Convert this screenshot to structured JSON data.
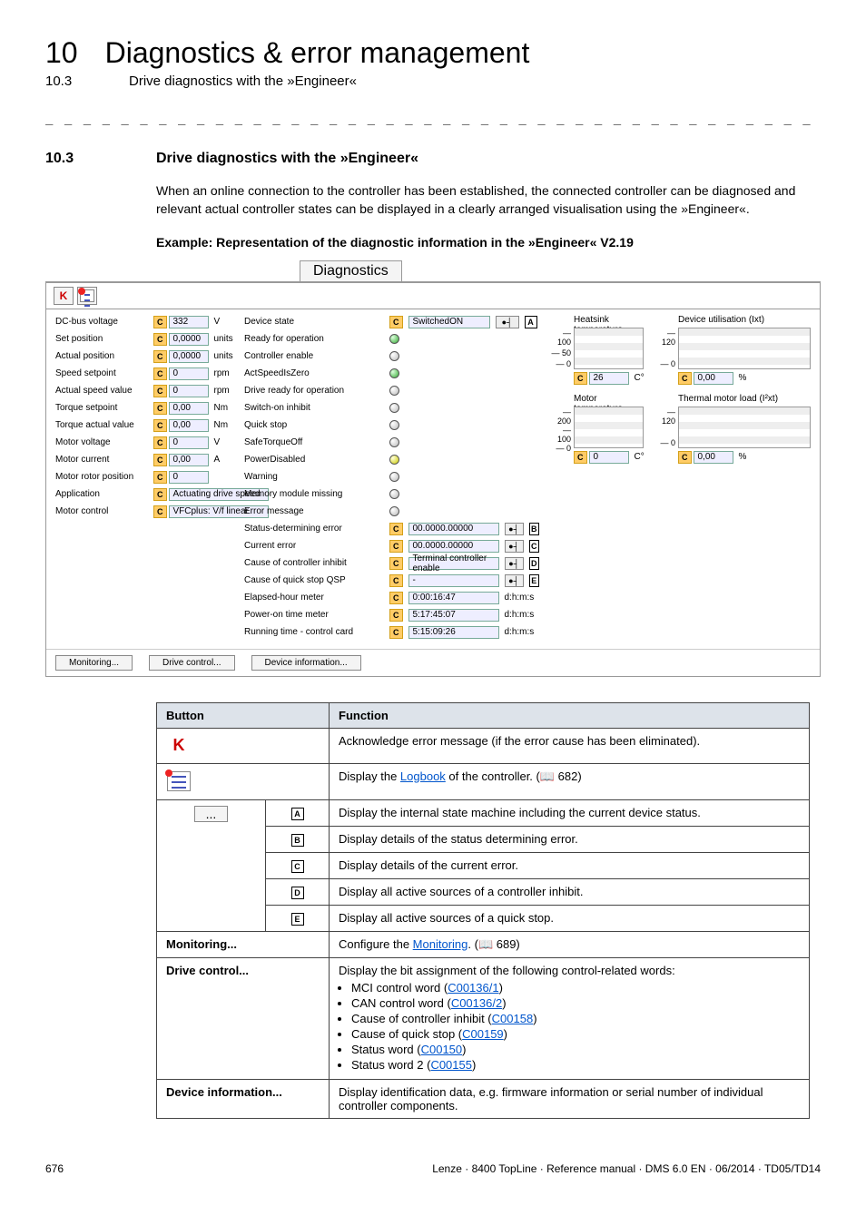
{
  "page": {
    "number": "10",
    "chapter_title": "Diagnostics & error management",
    "sub_number": "10.3",
    "sub_title": "Drive diagnostics with the »Engineer«",
    "dashes": "_ _ _ _ _ _ _ _ _ _ _ _ _ _ _ _ _ _ _ _ _ _ _ _ _ _ _ _ _ _ _ _ _ _ _ _ _ _ _ _ _ _ _ _ _ _ _ _ _ _ _ _ _ _ _ _ _ _ _ _ _ _ _"
  },
  "section": {
    "num": "10.3",
    "title": "Drive diagnostics with the »Engineer«",
    "para": "When an online connection to the controller has been established, the connected controller can be diagnosed and relevant actual controller states can be displayed in a clearly arranged visualisation using the »Engineer«.",
    "example_caption": "Example: Representation of the diagnostic information in the »Engineer« V2.19"
  },
  "diag": {
    "tab": "Diagnostics",
    "left_rows": [
      {
        "label": "DC-bus voltage",
        "val": "332",
        "unit": "V"
      },
      {
        "label": "Set position",
        "val": "0,0000",
        "unit": "units"
      },
      {
        "label": "Actual position",
        "val": "0,0000",
        "unit": "units"
      },
      {
        "label": "Speed setpoint",
        "val": "0",
        "unit": "rpm"
      },
      {
        "label": "Actual speed value",
        "val": "0",
        "unit": "rpm"
      },
      {
        "label": "Torque setpoint",
        "val": "0,00",
        "unit": "Nm"
      },
      {
        "label": "Torque actual value",
        "val": "0,00",
        "unit": "Nm"
      },
      {
        "label": "Motor voltage",
        "val": "0",
        "unit": "V"
      },
      {
        "label": "Motor current",
        "val": "0,00",
        "unit": "A"
      },
      {
        "label": "Motor rotor position",
        "val": "0",
        "unit": ""
      }
    ],
    "app_label": "Application",
    "app_val": "Actuating drive speed",
    "ctrl_label": "Motor control",
    "ctrl_val": "VFCplus: V/f linear",
    "state_rows": [
      {
        "label": "Device state",
        "type": "text",
        "val": "SwitchedON",
        "letter": "A"
      },
      {
        "label": "Ready for operation",
        "type": "led",
        "led": "green"
      },
      {
        "label": "Controller enable",
        "type": "led",
        "led": "gray"
      },
      {
        "label": "ActSpeedIsZero",
        "type": "led",
        "led": "green"
      },
      {
        "label": "Drive ready for operation",
        "type": "led",
        "led": "gray"
      },
      {
        "label": "Switch-on inhibit",
        "type": "led",
        "led": "gray"
      },
      {
        "label": "Quick stop",
        "type": "led",
        "led": "gray"
      },
      {
        "label": "SafeTorqueOff",
        "type": "led",
        "led": "gray"
      },
      {
        "label": "PowerDisabled",
        "type": "led",
        "led": "yellow"
      },
      {
        "label": "Warning",
        "type": "led",
        "led": "gray"
      },
      {
        "label": "Memory module missing",
        "type": "led",
        "led": "gray"
      },
      {
        "label": "Error message",
        "type": "led",
        "led": "gray"
      }
    ],
    "err_rows": [
      {
        "label": "Status-determining error",
        "val": "00.0000.00000",
        "letter": "B"
      },
      {
        "label": "Current error",
        "val": "00.0000.00000",
        "letter": "C"
      },
      {
        "label": "Cause of controller inhibit",
        "val": "Terminal controller enable",
        "letter": "D"
      },
      {
        "label": "Cause of quick stop QSP",
        "val": "-",
        "letter": "E"
      },
      {
        "label": "Elapsed-hour meter",
        "val": "0:00:16:47",
        "unit": "d:h:m:s"
      },
      {
        "label": "Power-on time meter",
        "val": "5:17:45:07",
        "unit": "d:h:m:s"
      },
      {
        "label": "Running time - control card",
        "val": "5:15:09:26",
        "unit": "d:h:m:s"
      }
    ],
    "meters": [
      {
        "title": "Heatsink temperature",
        "scale": [
          "100",
          "50",
          "0"
        ],
        "val": "26",
        "unit": "C°"
      },
      {
        "title": "Motor temperature",
        "scale": [
          "200",
          "100",
          "0"
        ],
        "val": "0",
        "unit": "C°"
      }
    ],
    "meters2": [
      {
        "title": "Device utilisation (Ixt)",
        "scale": [
          "120",
          "0"
        ],
        "val": "0,00",
        "unit": "%"
      },
      {
        "title": "Thermal motor load (I²xt)",
        "scale": [
          "120",
          "0"
        ],
        "val": "0,00",
        "unit": "%"
      }
    ],
    "bottom_buttons": [
      "Monitoring...",
      "Drive control...",
      "Device information..."
    ]
  },
  "table": {
    "head_button": "Button",
    "head_function": "Function",
    "ack": "Acknowledge error message (if the error cause has been eliminated).",
    "logbook_pre": "Display the ",
    "logbook_link": "Logbook",
    "logbook_post": " of the controller. (",
    "logbook_ref": " 682)",
    "rowA": "Display the internal state machine including the current device status.",
    "rowB": "Display details of the status determining error.",
    "rowC": "Display details of the current error.",
    "rowD": "Display all active sources of a controller inhibit.",
    "rowE": "Display all active sources of a quick stop.",
    "mon_label": "Monitoring...",
    "mon_pre": "Configure the ",
    "mon_link": "Monitoring",
    "mon_post": ". (",
    "mon_ref": " 689)",
    "drv_label": "Drive control...",
    "drv_intro": "Display the bit assignment of the following control-related words:",
    "drv_items": [
      {
        "t": "MCI control word (",
        "l": "C00136/1",
        "e": ")"
      },
      {
        "t": "CAN control word (",
        "l": "C00136/2",
        "e": ")"
      },
      {
        "t": "Cause of controller inhibit (",
        "l": "C00158",
        "e": ")"
      },
      {
        "t": "Cause of quick stop (",
        "l": "C00159",
        "e": ")"
      },
      {
        "t": "Status word (",
        "l": "C00150",
        "e": ")"
      },
      {
        "t": "Status word 2 (",
        "l": "C00155",
        "e": ")"
      }
    ],
    "dev_label": "Device information...",
    "dev_text": "Display identification data, e.g. firmware information or serial number of individual controller components.",
    "letters": [
      "A",
      "B",
      "C",
      "D",
      "E"
    ]
  },
  "footer": {
    "page": "676",
    "doc": "Lenze · 8400 TopLine · Reference manual · DMS 6.0 EN · 06/2014 · TD05/TD14"
  }
}
